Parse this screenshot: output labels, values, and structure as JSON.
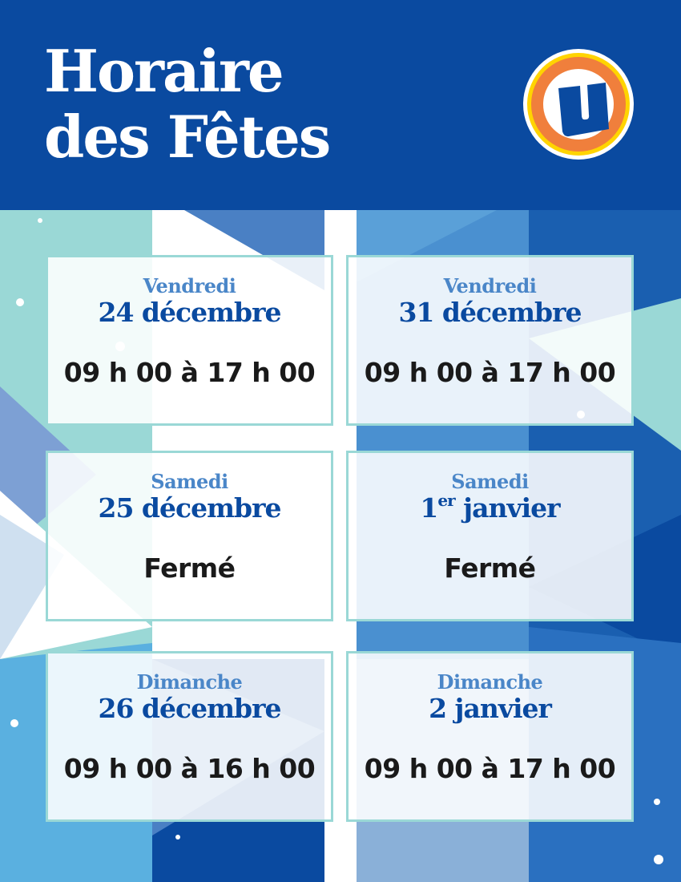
{
  "header": {
    "title_line1": "Horaire",
    "title_line2": "des Fêtes",
    "logo_letter": "U",
    "colors": {
      "blue": "#0a4aa0",
      "orange": "#f07f3c",
      "yellow": "#ffd400"
    }
  },
  "cards": [
    {
      "day": "Vendredi",
      "date": "24 décembre",
      "hours": "09 h 00 à 17 h 00"
    },
    {
      "day": "Vendredi",
      "date": "31 décembre",
      "hours": "09 h 00 à 17 h 00"
    },
    {
      "day": "Samedi",
      "date": "25 décembre",
      "hours": "Fermé"
    },
    {
      "day": "Samedi",
      "date_num": "1",
      "date_sup": "er",
      "date_rest": " janvier",
      "hours": "Fermé"
    },
    {
      "day": "Dimanche",
      "date": "26 décembre",
      "hours": "09 h 00 à 16 h 00"
    },
    {
      "day": "Dimanche",
      "date": "2 janvier",
      "hours": "09 h 00 à 17 h 00"
    }
  ]
}
